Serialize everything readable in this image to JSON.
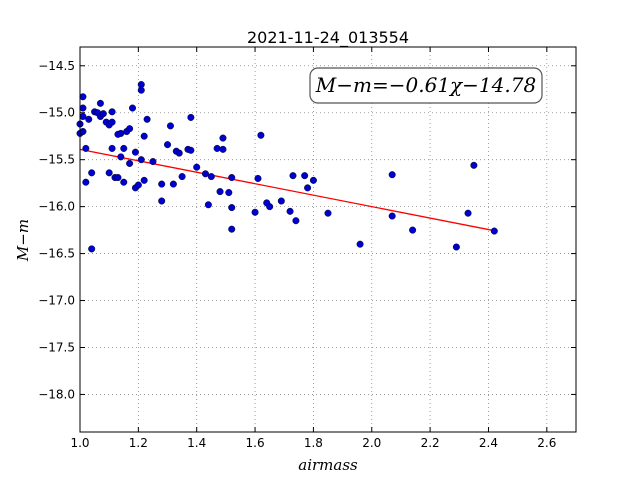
{
  "chart_data": {
    "type": "scatter",
    "title": "2021-11-24_013554",
    "xlabel": "airmass",
    "ylabel": "M−m",
    "xlim": [
      1.0,
      2.7
    ],
    "ylim": [
      -18.4,
      -14.3
    ],
    "xticks": [
      1.0,
      1.2,
      1.4,
      1.6,
      1.8,
      2.0,
      2.2,
      2.4,
      2.6
    ],
    "xtick_labels": [
      "1.0",
      "1.2",
      "1.4",
      "1.6",
      "1.8",
      "2.0",
      "2.2",
      "2.4",
      "2.6"
    ],
    "yticks": [
      -14.5,
      -15.0,
      -15.5,
      -16.0,
      -16.5,
      -17.0,
      -17.5,
      -18.0
    ],
    "ytick_labels": [
      "−14.5",
      "−15.0",
      "−15.5",
      "−16.0",
      "−16.5",
      "−17.0",
      "−17.5",
      "−18.0"
    ],
    "grid": true,
    "annotation": "M−m=−0.61χ−14.78",
    "fit": {
      "slope": -0.61,
      "intercept": -14.78,
      "x_range": [
        1.0,
        2.42
      ],
      "color": "#ff0000"
    },
    "point_color": "#0000cc",
    "points": [
      [
        1.0,
        -15.12
      ],
      [
        1.0,
        -15.22
      ],
      [
        1.01,
        -15.2
      ],
      [
        1.01,
        -15.04
      ],
      [
        1.01,
        -14.83
      ],
      [
        1.01,
        -14.95
      ],
      [
        1.02,
        -15.38
      ],
      [
        1.02,
        -15.74
      ],
      [
        1.03,
        -15.07
      ],
      [
        1.04,
        -15.64
      ],
      [
        1.04,
        -16.45
      ],
      [
        1.05,
        -14.99
      ],
      [
        1.06,
        -15.0
      ],
      [
        1.07,
        -14.9
      ],
      [
        1.07,
        -15.04
      ],
      [
        1.08,
        -15.01
      ],
      [
        1.09,
        -15.1
      ],
      [
        1.1,
        -15.13
      ],
      [
        1.1,
        -15.64
      ],
      [
        1.11,
        -14.99
      ],
      [
        1.11,
        -15.38
      ],
      [
        1.11,
        -15.1
      ],
      [
        1.12,
        -15.69
      ],
      [
        1.13,
        -15.23
      ],
      [
        1.13,
        -15.69
      ],
      [
        1.14,
        -15.47
      ],
      [
        1.14,
        -15.22
      ],
      [
        1.15,
        -15.74
      ],
      [
        1.15,
        -15.38
      ],
      [
        1.16,
        -15.2
      ],
      [
        1.17,
        -15.17
      ],
      [
        1.17,
        -15.54
      ],
      [
        1.18,
        -14.95
      ],
      [
        1.19,
        -15.42
      ],
      [
        1.19,
        -15.8
      ],
      [
        1.2,
        -15.77
      ],
      [
        1.21,
        -14.7
      ],
      [
        1.21,
        -14.76
      ],
      [
        1.21,
        -15.5
      ],
      [
        1.22,
        -15.72
      ],
      [
        1.22,
        -15.25
      ],
      [
        1.23,
        -15.07
      ],
      [
        1.25,
        -15.52
      ],
      [
        1.28,
        -15.94
      ],
      [
        1.28,
        -15.76
      ],
      [
        1.3,
        -15.34
      ],
      [
        1.31,
        -15.14
      ],
      [
        1.32,
        -15.76
      ],
      [
        1.33,
        -15.41
      ],
      [
        1.34,
        -15.43
      ],
      [
        1.35,
        -15.68
      ],
      [
        1.37,
        -15.39
      ],
      [
        1.38,
        -15.05
      ],
      [
        1.38,
        -15.4
      ],
      [
        1.4,
        -15.58
      ],
      [
        1.43,
        -15.65
      ],
      [
        1.44,
        -15.98
      ],
      [
        1.45,
        -15.68
      ],
      [
        1.47,
        -15.38
      ],
      [
        1.48,
        -15.84
      ],
      [
        1.49,
        -15.39
      ],
      [
        1.49,
        -15.27
      ],
      [
        1.51,
        -15.85
      ],
      [
        1.52,
        -16.01
      ],
      [
        1.52,
        -16.24
      ],
      [
        1.52,
        -15.69
      ],
      [
        1.6,
        -16.06
      ],
      [
        1.61,
        -15.7
      ],
      [
        1.62,
        -15.24
      ],
      [
        1.64,
        -15.96
      ],
      [
        1.65,
        -16.0
      ],
      [
        1.69,
        -15.94
      ],
      [
        1.72,
        -16.05
      ],
      [
        1.73,
        -15.67
      ],
      [
        1.74,
        -16.15
      ],
      [
        1.77,
        -15.67
      ],
      [
        1.78,
        -15.8
      ],
      [
        1.8,
        -15.72
      ],
      [
        1.85,
        -16.07
      ],
      [
        1.96,
        -16.4
      ],
      [
        2.07,
        -15.66
      ],
      [
        2.07,
        -16.1
      ],
      [
        2.14,
        -16.25
      ],
      [
        2.29,
        -16.43
      ],
      [
        2.33,
        -16.07
      ],
      [
        2.35,
        -15.56
      ],
      [
        2.42,
        -16.26
      ]
    ]
  }
}
